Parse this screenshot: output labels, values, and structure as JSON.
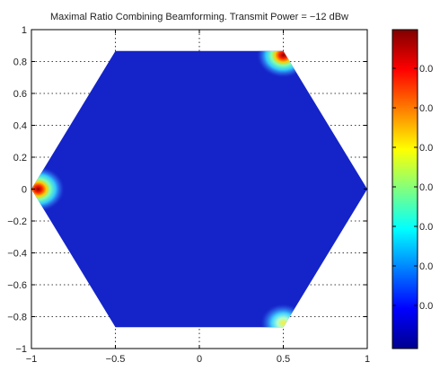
{
  "chart_data": {
    "type": "heatmap",
    "title": "Maximal Ratio Combining Beamforming. Transmit Power = −12 dBw",
    "xlabel": "",
    "ylabel": "",
    "xlim": [
      -1,
      1
    ],
    "ylim": [
      -1,
      1
    ],
    "x_ticks": [
      "−1",
      "−0.5",
      "0",
      "0.5",
      "1"
    ],
    "y_ticks": [
      "1",
      "0.8",
      "0.6",
      "0.4",
      "0.2",
      "0",
      "−0.2",
      "−0.4",
      "−0.6",
      "−0.8",
      "−1"
    ],
    "grid": true,
    "region": {
      "shape": "hexagon",
      "vertices": [
        [
          1.0,
          0.0
        ],
        [
          0.5,
          0.866
        ],
        [
          -0.5,
          0.866
        ],
        [
          -1.0,
          0.0
        ],
        [
          -0.5,
          -0.866
        ],
        [
          0.5,
          -0.866
        ]
      ]
    },
    "base_color": "#1424c8",
    "hotspots": [
      {
        "x": 0.5,
        "y": 0.84,
        "intensity": "high"
      },
      {
        "x": -0.96,
        "y": 0.0,
        "intensity": "high"
      },
      {
        "x": 0.5,
        "y": -0.84,
        "intensity": "medium"
      }
    ],
    "colorbar": {
      "colormap": "jet",
      "tick_labels": [
        "0.0",
        "0.0",
        "0.0",
        "0.0",
        "0.0",
        "0.0",
        "0.0"
      ]
    }
  }
}
